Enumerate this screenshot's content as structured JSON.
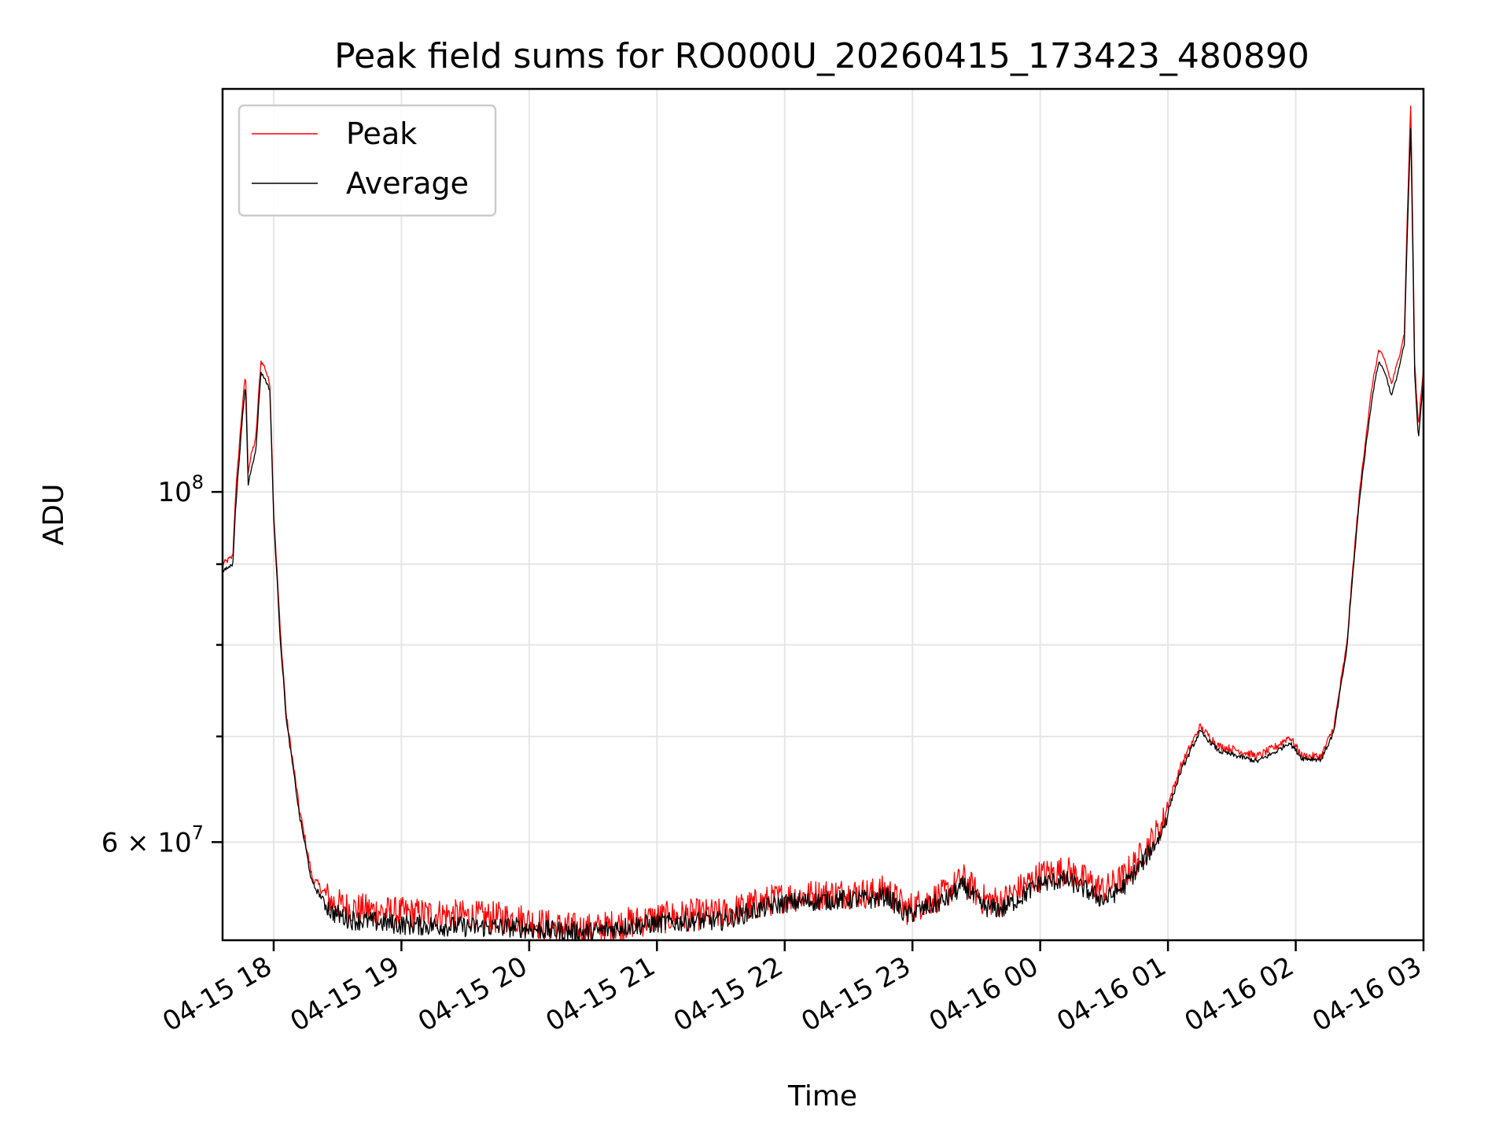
{
  "chart_data": {
    "type": "line",
    "title": "Peak field sums for RO000U_20260415_173423_480890",
    "xlabel": "Time",
    "ylabel": "ADU",
    "yscale": "log",
    "ylim": [
      52000000,
      180000000
    ],
    "xlim_hours": [
      17.6,
      27.0
    ],
    "grid": true,
    "legend_position": "top-left",
    "x_ticks": [
      {
        "hour": 18,
        "label": "04-15 18"
      },
      {
        "hour": 19,
        "label": "04-15 19"
      },
      {
        "hour": 20,
        "label": "04-15 20"
      },
      {
        "hour": 21,
        "label": "04-15 21"
      },
      {
        "hour": 22,
        "label": "04-15 22"
      },
      {
        "hour": 23,
        "label": "04-15 23"
      },
      {
        "hour": 24,
        "label": "04-16 00"
      },
      {
        "hour": 25,
        "label": "04-16 01"
      },
      {
        "hour": 26,
        "label": "04-16 02"
      },
      {
        "hour": 27,
        "label": "04-16 03"
      }
    ],
    "y_major_ticks": [
      {
        "value": 100000000,
        "base": "10",
        "exp": "8",
        "mantissa": ""
      },
      {
        "value": 60000000,
        "base": "10",
        "exp": "7",
        "mantissa": "6 × "
      }
    ],
    "y_minor_ticks": [
      70000000,
      80000000,
      90000000
    ],
    "series": [
      {
        "name": "Peak",
        "color": "#ff0000",
        "noise_amplitude": 800000,
        "x": [
          17.6,
          17.68,
          17.7,
          17.75,
          17.78,
          17.8,
          17.83,
          17.86,
          17.9,
          17.93,
          17.97,
          18.0,
          18.05,
          18.1,
          18.2,
          18.3,
          18.45,
          18.6,
          18.8,
          19.0,
          19.3,
          19.6,
          19.9,
          20.2,
          20.5,
          20.7,
          21.0,
          21.3,
          21.5,
          21.8,
          22.0,
          22.3,
          22.5,
          22.7,
          22.8,
          22.95,
          23.1,
          23.25,
          23.4,
          23.55,
          23.7,
          23.85,
          24.0,
          24.2,
          24.35,
          24.5,
          24.65,
          24.8,
          24.95,
          25.1,
          25.25,
          25.4,
          25.55,
          25.7,
          25.85,
          25.95,
          26.05,
          26.2,
          26.3,
          26.4,
          26.5,
          26.6,
          26.65,
          26.7,
          26.75,
          26.8,
          26.85,
          26.9,
          26.93,
          26.96,
          27.0
        ],
        "y": [
          90000000,
          91000000,
          99000000,
          112000000,
          119000000,
          103000000,
          106000000,
          108000000,
          121000000,
          120000000,
          117000000,
          97000000,
          82000000,
          72000000,
          63000000,
          57000000,
          55000000,
          54500000,
          54300000,
          54100000,
          54000000,
          53800000,
          53700000,
          53000000,
          52800000,
          53200000,
          53700000,
          54000000,
          54000000,
          54900000,
          55400000,
          55600000,
          55700000,
          55700000,
          56000000,
          54400000,
          55000000,
          55600000,
          56900000,
          55200000,
          55000000,
          56100000,
          57200000,
          57600000,
          56800000,
          55900000,
          57000000,
          59000000,
          61500000,
          67000000,
          71000000,
          69000000,
          68600000,
          68000000,
          69000000,
          70000000,
          68000000,
          68000000,
          71000000,
          80000000,
          100000000,
          117000000,
          123000000,
          121000000,
          117000000,
          121000000,
          126000000,
          176000000,
          121000000,
          110000000,
          120000000
        ]
      },
      {
        "name": "Average",
        "color": "#000000",
        "noise_amplitude": 500000,
        "x": [
          17.6,
          17.68,
          17.7,
          17.75,
          17.78,
          17.8,
          17.83,
          17.86,
          17.9,
          17.93,
          17.97,
          18.0,
          18.05,
          18.1,
          18.2,
          18.3,
          18.45,
          18.6,
          18.8,
          19.0,
          19.3,
          19.6,
          19.9,
          20.2,
          20.5,
          20.7,
          21.0,
          21.3,
          21.5,
          21.8,
          22.0,
          22.3,
          22.5,
          22.7,
          22.8,
          22.95,
          23.1,
          23.25,
          23.4,
          23.55,
          23.7,
          23.85,
          24.0,
          24.2,
          24.35,
          24.5,
          24.65,
          24.8,
          24.95,
          25.1,
          25.25,
          25.4,
          25.55,
          25.7,
          25.85,
          25.95,
          26.05,
          26.2,
          26.3,
          26.4,
          26.5,
          26.6,
          26.65,
          26.7,
          26.75,
          26.8,
          26.85,
          26.9,
          26.93,
          26.96,
          27.0
        ],
        "y": [
          89000000,
          90000000,
          97000000,
          110000000,
          117000000,
          101000000,
          104000000,
          106000000,
          119000000,
          118000000,
          116000000,
          96000000,
          81000000,
          71500000,
          62500000,
          56500000,
          54200000,
          53600000,
          53400000,
          53200000,
          53100000,
          53000000,
          53000000,
          52700000,
          52600000,
          53000000,
          53300000,
          53500000,
          53500000,
          54400000,
          54900000,
          55100000,
          55200000,
          55200000,
          55500000,
          53900000,
          54500000,
          55100000,
          56300000,
          54600000,
          54400000,
          55400000,
          56500000,
          56800000,
          56000000,
          55100000,
          56200000,
          58200000,
          60800000,
          66500000,
          70500000,
          68500000,
          68000000,
          67500000,
          68500000,
          69400000,
          67800000,
          67700000,
          70500000,
          79500000,
          99000000,
          115000000,
          121000000,
          119000000,
          115000000,
          119000000,
          124000000,
          170000000,
          119000000,
          108000000,
          118000000
        ]
      }
    ]
  }
}
